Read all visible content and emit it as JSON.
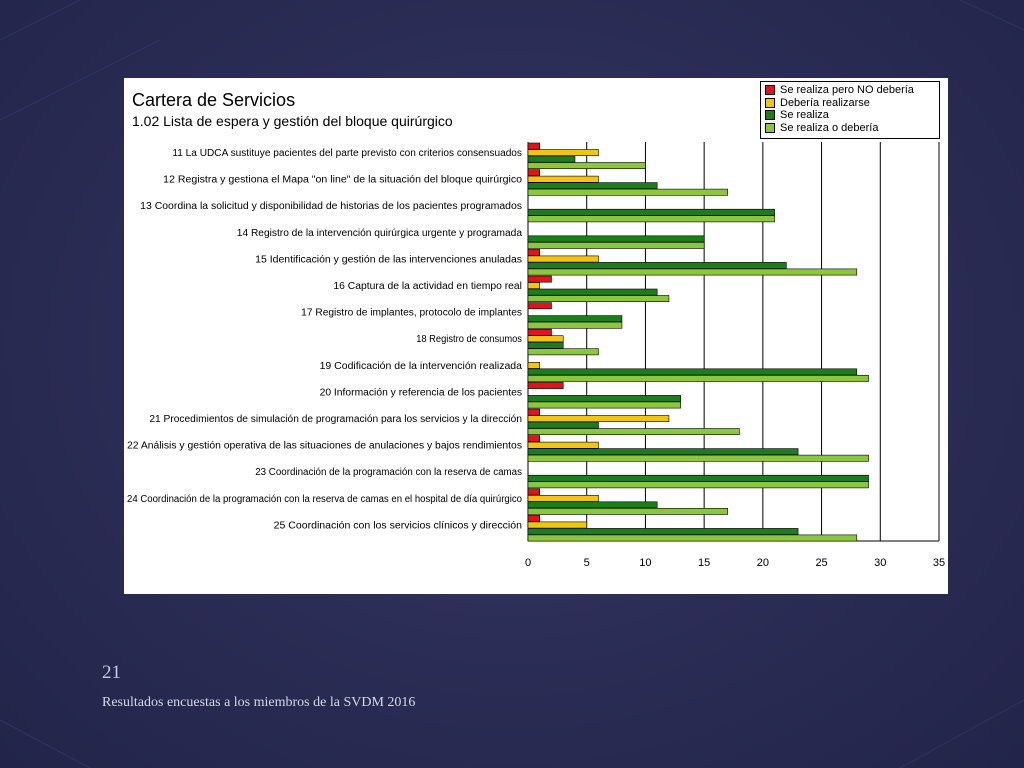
{
  "slide": {
    "number": "21",
    "footer": "Resultados encuestas a los miembros de la SVDM 2016"
  },
  "colors": {
    "background": "#2b2c55",
    "panel": "#ffffff"
  },
  "chart_data": {
    "type": "bar",
    "orientation": "horizontal",
    "title": "Cartera de Servicios",
    "subtitle": "1.02  Lista de espera y gestión del bloque quirúrgico",
    "xlim": [
      0,
      35
    ],
    "xticks": [
      0,
      5,
      10,
      15,
      20,
      25,
      30,
      35
    ],
    "grid": "vertical",
    "legend_position": "top-right",
    "categories": [
      "11 La UDCA sustituye pacientes del parte previsto con criterios consensuados",
      "12 Registra y gestiona el Mapa \"on line\" de la situación del bloque quirúrgico",
      "13 Coordina la solicitud y disponibilidad de historias de los pacientes programados",
      "14 Registro de la intervención quirúrgica urgente y programada",
      "15 Identificación y gestión de las intervenciones anuladas",
      "16 Captura de la actividad en tiempo real",
      "17 Registro de implantes, protocolo de implantes",
      "18 Registro de consumos",
      "19 Codificación de la intervención realizada",
      "20 Información y referencia de los pacientes",
      "21 Procedimientos de simulación de programación para los servicios y la dirección",
      "22 Análisis y gestión operativa de las situaciones de anulaciones y bajos rendimientos",
      "23 Coordinación de la programación con la reserva de camas",
      "24 Coordinación de la programación con la reserva de camas en el hospital de día quirúrgico",
      "25 Coordinación con los servicios clínicos y dirección"
    ],
    "series": [
      {
        "name": "Se realiza pero NO debería",
        "color": "#e0141b",
        "values": [
          1,
          1,
          0,
          0,
          1,
          2,
          2,
          2,
          0,
          3,
          1,
          1,
          0,
          1,
          1
        ]
      },
      {
        "name": "Debería realizarse",
        "color": "#f2c418",
        "values": [
          6,
          6,
          0,
          0,
          6,
          1,
          0,
          3,
          1,
          0,
          12,
          6,
          0,
          6,
          5
        ]
      },
      {
        "name": "Se realiza",
        "color": "#1d7d1d",
        "values": [
          4,
          11,
          21,
          15,
          22,
          11,
          8,
          3,
          28,
          13,
          6,
          23,
          29,
          11,
          23
        ]
      },
      {
        "name": "Se realiza o debería",
        "color": "#8cc63e",
        "values": [
          10,
          17,
          21,
          15,
          28,
          12,
          8,
          6,
          29,
          13,
          18,
          29,
          29,
          17,
          28
        ]
      }
    ]
  }
}
